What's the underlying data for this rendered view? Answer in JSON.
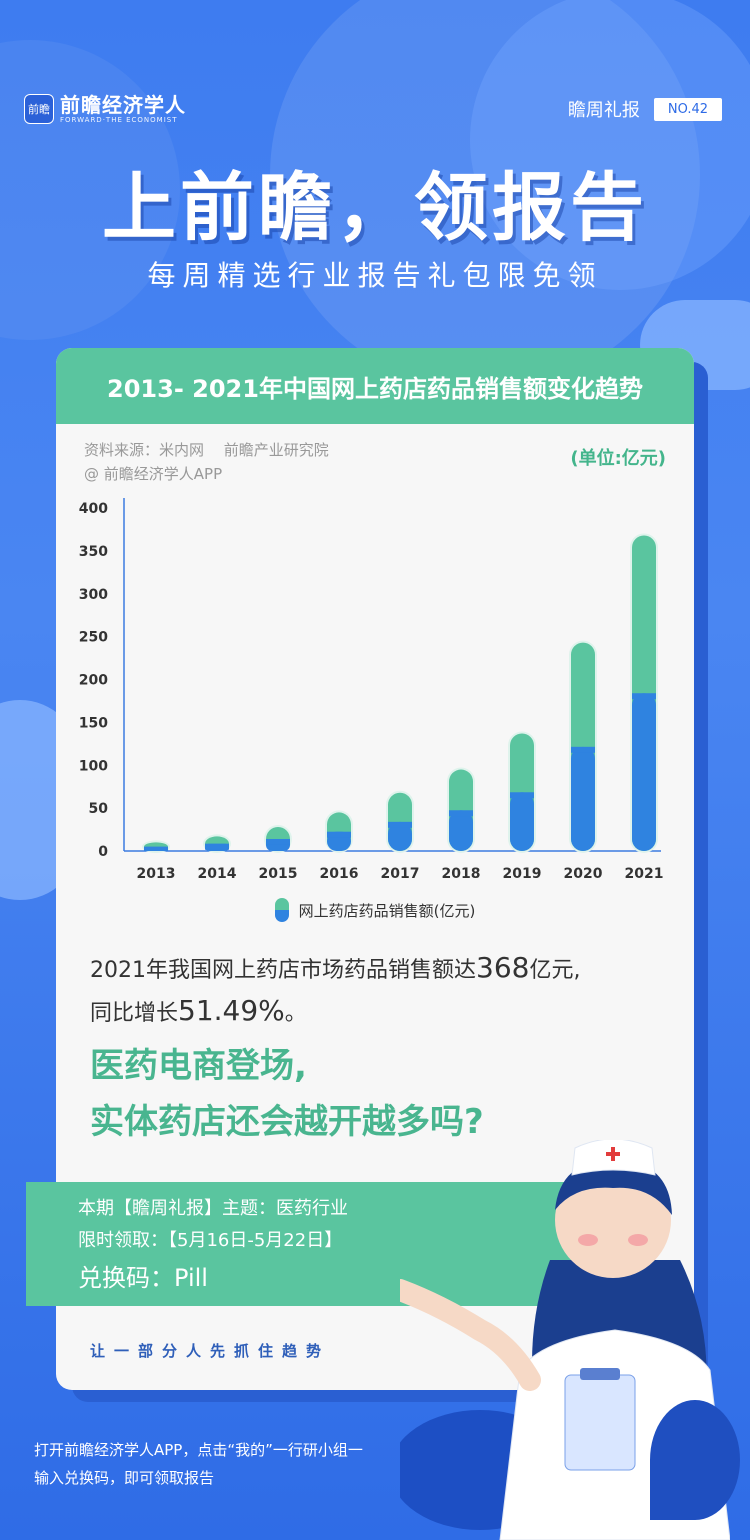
{
  "brand": {
    "logo_mark": "前瞻",
    "name_cn": "前瞻经济学人",
    "name_en": "FORWARD·THE ECONOMIST"
  },
  "issue": {
    "label": "瞻周礼报",
    "number": "NO.42"
  },
  "headline": "上前瞻，领报告",
  "subheadline": "每周精选行业报告礼包限免领",
  "card": {
    "title": "2013- 2021年中国网上药店药品销售额变化趋势",
    "source_line1": "资料来源：米内网　 前瞻产业研究院",
    "source_line2": "@ 前瞻经济学人APP",
    "unit": "(单位:亿元)",
    "legend": "网上药店药品销售额(亿元)",
    "desc_part1": "2021年我国网上药店市场药品销售额达",
    "desc_value": "368",
    "desc_part2": "亿元,",
    "desc_line2_a": "同比增长",
    "desc_line2_value": "51.49%",
    "desc_line2_b": "。",
    "question_line1": "医药电商登场,",
    "question_line2": "实体药店还会越开越多吗?",
    "slogan": "让一部分人先抓住趋势"
  },
  "promo": {
    "line1": "本期【瞻周礼报】主题：医药行业",
    "line2": "限时领取：【5月16日-5月22日】",
    "line3": "兑换码：Pill"
  },
  "footer": {
    "line1": "打开前瞻经济学人APP，点击“我的”一行研小组一",
    "line2": "输入兑换码，即可领取报告"
  },
  "colors": {
    "background": "#3e7cf0",
    "accent_green": "#5ac59f",
    "bar_blue": "#2f83e0",
    "card": "#f7f7f7"
  },
  "chart_data": {
    "type": "bar",
    "categories": [
      "2013",
      "2014",
      "2015",
      "2016",
      "2017",
      "2018",
      "2019",
      "2020",
      "2021"
    ],
    "values": [
      10,
      17,
      28,
      45,
      68,
      95,
      137,
      243,
      368
    ],
    "yticks": [
      "0",
      "50",
      "100",
      "150",
      "200",
      "250",
      "300",
      "350",
      "400"
    ],
    "ylim": [
      0,
      400
    ],
    "series_name": "网上药店药品销售额(亿元)",
    "title": "2013- 2021年中国网上药店药品销售额变化趋势",
    "unit": "(单位:亿元)"
  }
}
